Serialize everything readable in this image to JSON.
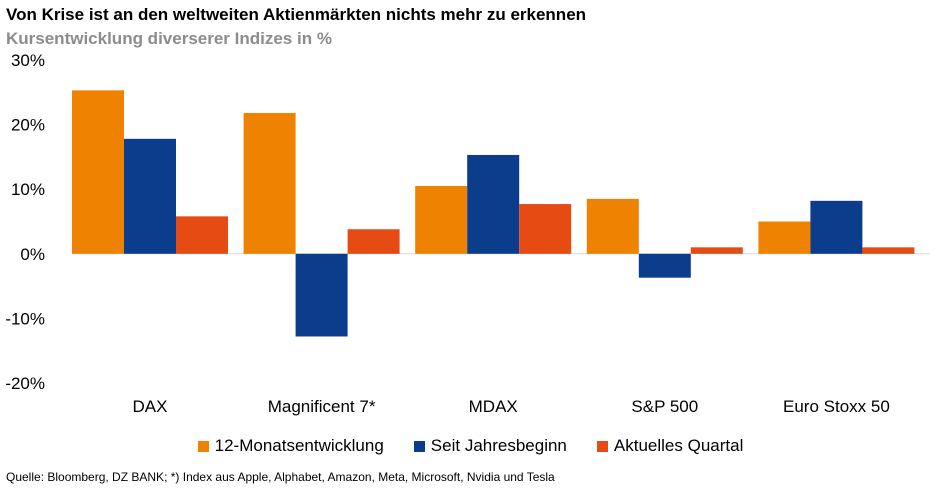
{
  "title": "Von Krise ist an den weltweiten Aktienmärkten nichts mehr zu erkennen",
  "subtitle": "Kursentwicklung diverserer Indizes in %",
  "source": "Quelle: Bloomberg, DZ BANK; *) Index aus Apple, Alphabet, Amazon, Meta, Microsoft, Nvidia und Tesla",
  "chart_data": {
    "type": "bar",
    "categories": [
      "DAX",
      "Magnificent 7*",
      "MDAX",
      "S&P 500",
      "Euro Stoxx 50"
    ],
    "series": [
      {
        "name": "12-Monatsentwicklung",
        "color": "#ef8200",
        "values": [
          25.3,
          21.8,
          10.5,
          8.5,
          5.0
        ]
      },
      {
        "name": "Seit Jahresbeginn",
        "color": "#0c3c8c",
        "values": [
          17.8,
          -12.8,
          15.3,
          -3.7,
          8.2
        ]
      },
      {
        "name": "Aktuelles Quartal",
        "color": "#e64b14",
        "values": [
          5.8,
          3.8,
          7.7,
          1.0,
          1.0
        ]
      }
    ],
    "ylim": [
      -20,
      30
    ],
    "yticks": [
      30,
      20,
      10,
      0,
      -10,
      -20
    ],
    "ytick_labels": [
      "30%",
      "20%",
      "10%",
      "0%",
      "-10%",
      "-20%"
    ],
    "grid": false,
    "legend_position": "bottom"
  }
}
